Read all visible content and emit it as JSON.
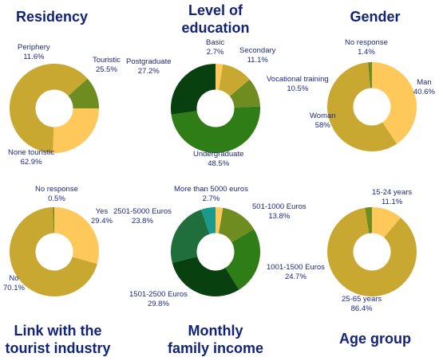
{
  "colors": {
    "title": "#12237a",
    "label": "#1a2a80",
    "light_yellow": "#ffc85a",
    "olive": "#6e8c20",
    "mustard": "#c9a832",
    "green": "#2f7d17",
    "dark_green": "#084010",
    "teal": "#1a9a8c"
  },
  "chart_data": [
    {
      "type": "pie",
      "donut": true,
      "title": "Residency",
      "slices": [
        {
          "label": "Touristic",
          "value": 25.5,
          "display": "25.5%",
          "color": "#ffc85a"
        },
        {
          "label": "None touristic",
          "value": 62.9,
          "display": "62.9%",
          "color": "#c9a832"
        },
        {
          "label": "Periphery",
          "value": 11.6,
          "display": "11.6%",
          "color": "#6e8c20"
        }
      ]
    },
    {
      "type": "pie",
      "donut": true,
      "title": "Level of\neducation",
      "slices": [
        {
          "label": "Basic",
          "value": 2.7,
          "display": "2.7%",
          "color": "#ffc85a"
        },
        {
          "label": "Secondary",
          "value": 11.1,
          "display": "11.1%",
          "color": "#c9a832"
        },
        {
          "label": "Vocational training",
          "value": 10.5,
          "display": "10.5%",
          "color": "#6e8c20"
        },
        {
          "label": "Undergraduate",
          "value": 48.5,
          "display": "48.5%",
          "color": "#2f7d17"
        },
        {
          "label": "Postgraduate",
          "value": 27.2,
          "display": "27.2%",
          "color": "#084010"
        }
      ]
    },
    {
      "type": "pie",
      "donut": true,
      "title": "Gender",
      "slices": [
        {
          "label": "Man",
          "value": 40.6,
          "display": "40.6%",
          "color": "#ffc85a"
        },
        {
          "label": "Woman",
          "value": 58,
          "display": "58%",
          "color": "#c9a832"
        },
        {
          "label": "No response",
          "value": 1.4,
          "display": "1.4%",
          "color": "#6e8c20"
        }
      ]
    },
    {
      "type": "pie",
      "donut": true,
      "title": "Link with the\ntourist industry",
      "slices": [
        {
          "label": "Yes",
          "value": 29.4,
          "display": "29.4%",
          "color": "#ffc85a"
        },
        {
          "label": "No",
          "value": 70.1,
          "display": "70.1%",
          "color": "#c9a832"
        },
        {
          "label": "No response",
          "value": 0.5,
          "display": "0.5%",
          "color": "#6e8c20"
        }
      ]
    },
    {
      "type": "pie",
      "donut": true,
      "title": "Monthly\nfamily income",
      "slices": [
        {
          "label": "More than 5000 euros",
          "value": 2.7,
          "display": "2.7%",
          "color": "#ffc85a"
        },
        {
          "label": "501-1000 Euros",
          "value": 13.8,
          "display": "13.8%",
          "color": "#6e8c20"
        },
        {
          "label": "1001-1500 Euros",
          "value": 24.7,
          "display": "24.7%",
          "color": "#2f7d17"
        },
        {
          "label": "1501-2500 Euros",
          "value": 29.8,
          "display": "29.8%",
          "color": "#084010"
        },
        {
          "label": "2501-5000 Euros",
          "value": 23.8,
          "display": "23.8%",
          "color": "#1f6e3c"
        },
        {
          "label": "",
          "value": 5.2,
          "display": "",
          "color": "#1a9a8c"
        }
      ]
    },
    {
      "type": "pie",
      "donut": true,
      "title": "Age group",
      "slices": [
        {
          "label": "15-24 years",
          "value": 11.1,
          "display": "11.1%",
          "color": "#ffc85a"
        },
        {
          "label": "25-65 years",
          "value": 86.4,
          "display": "86.4%",
          "color": "#c9a832"
        },
        {
          "label": "",
          "value": 2.5,
          "display": "",
          "color": "#6e8c20"
        }
      ]
    }
  ]
}
